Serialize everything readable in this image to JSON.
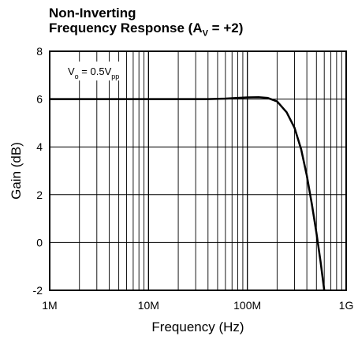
{
  "chart_data": {
    "type": "line",
    "title_line1": "Non-Inverting",
    "title_line2_prefix": "Frequency Response (A",
    "title_line2_sub": "V",
    "title_line2_suffix": " = +2)",
    "xlabel": "Frequency (Hz)",
    "ylabel": "Gain (dB)",
    "x_scale": "log",
    "xlim": [
      1000000,
      1000000000
    ],
    "ylim": [
      -2,
      8
    ],
    "grid": true,
    "x_ticks": [
      {
        "value": 1000000,
        "label": "1M"
      },
      {
        "value": 10000000,
        "label": "10M"
      },
      {
        "value": 100000000,
        "label": "100M"
      },
      {
        "value": 1000000000,
        "label": "1G"
      }
    ],
    "y_ticks": [
      {
        "value": 8,
        "label": "8"
      },
      {
        "value": 6,
        "label": "6"
      },
      {
        "value": 4,
        "label": "4"
      },
      {
        "value": 2,
        "label": "2"
      },
      {
        "value": 0,
        "label": "0"
      },
      {
        "value": -2,
        "label": "-2"
      }
    ],
    "annotation": {
      "main": "V",
      "sub1": "o",
      "mid": " = 0.5V",
      "sub2": "pp"
    },
    "line_color": "#000000",
    "series": [
      {
        "x": [
          1000000,
          2000000,
          5000000,
          10000000,
          20000000,
          40000000,
          60000000,
          80000000,
          100000000,
          130000000,
          160000000,
          200000000,
          250000000,
          300000000,
          350000000,
          400000000,
          450000000,
          500000000,
          550000000,
          600000000
        ],
        "y": [
          6.0,
          6.0,
          6.0,
          6.0,
          6.0,
          6.0,
          6.02,
          6.05,
          6.07,
          6.08,
          6.05,
          5.9,
          5.45,
          4.8,
          3.9,
          2.8,
          1.6,
          0.4,
          -0.8,
          -2.0
        ]
      }
    ]
  }
}
